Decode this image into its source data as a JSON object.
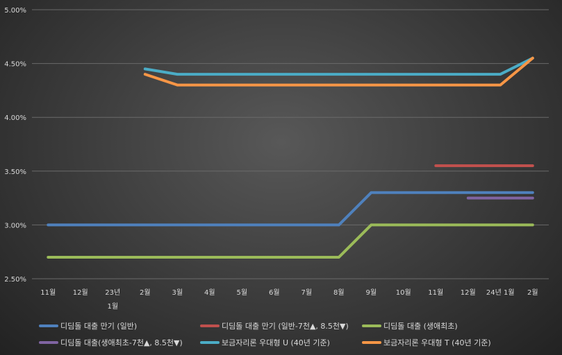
{
  "chart_data": {
    "type": "line",
    "title": "",
    "xlabel": "",
    "ylabel": "",
    "categories": [
      "11월",
      "12월",
      "23년 1월",
      "2월",
      "3월",
      "4월",
      "5월",
      "6월",
      "7월",
      "8월",
      "9월",
      "10월",
      "11월",
      "12월",
      "24년 1월",
      "2월"
    ],
    "category_lines": [
      [
        "11월"
      ],
      [
        "12월"
      ],
      [
        "23년",
        "1월"
      ],
      [
        "2월"
      ],
      [
        "3월"
      ],
      [
        "4월"
      ],
      [
        "5월"
      ],
      [
        "6월"
      ],
      [
        "7월"
      ],
      [
        "8월"
      ],
      [
        "9월"
      ],
      [
        "10월"
      ],
      [
        "11월"
      ],
      [
        "12월"
      ],
      [
        "24년 1월"
      ],
      [
        "2월"
      ]
    ],
    "ylim": [
      2.5,
      5.0
    ],
    "yticks": [
      2.5,
      3.0,
      3.5,
      4.0,
      4.5,
      5.0
    ],
    "ytick_labels": [
      "2.50%",
      "3.00%",
      "3.50%",
      "4.00%",
      "4.50%",
      "5.00%"
    ],
    "grid": true,
    "legend_position": "bottom",
    "series": [
      {
        "name": "디딤돌 대출 만기 (일반)",
        "color": "#4f81bd",
        "values": [
          3.0,
          3.0,
          3.0,
          3.0,
          3.0,
          3.0,
          3.0,
          3.0,
          3.0,
          3.0,
          3.3,
          3.3,
          3.3,
          3.3,
          3.3,
          3.3
        ]
      },
      {
        "name": "디딤돌 대출 만기 (일반-7천▲, 8.5천▼)",
        "color": "#c0504d",
        "values": [
          null,
          null,
          null,
          null,
          null,
          null,
          null,
          null,
          null,
          null,
          null,
          null,
          3.55,
          3.55,
          3.55,
          3.55
        ]
      },
      {
        "name": "디딤돌 대출 (생애최초)",
        "color": "#9bbb59",
        "values": [
          2.7,
          2.7,
          2.7,
          2.7,
          2.7,
          2.7,
          2.7,
          2.7,
          2.7,
          2.7,
          3.0,
          3.0,
          3.0,
          3.0,
          3.0,
          3.0
        ]
      },
      {
        "name": "디딤돌 대출(생애최초-7천▲, 8.5천▼)",
        "color": "#8064a2",
        "values": [
          null,
          null,
          null,
          null,
          null,
          null,
          null,
          null,
          null,
          null,
          null,
          null,
          null,
          3.25,
          3.25,
          3.25
        ]
      },
      {
        "name": "보금자리론 우대형 U (40년 기준)",
        "color": "#4bacc6",
        "values": [
          null,
          null,
          null,
          4.45,
          4.4,
          4.4,
          4.4,
          4.4,
          4.4,
          4.4,
          4.4,
          4.4,
          4.4,
          4.4,
          4.4,
          4.55
        ]
      },
      {
        "name": "보금자리론 우대형 T (40년 기준)",
        "color": "#f79646",
        "values": [
          null,
          null,
          null,
          4.4,
          4.3,
          4.3,
          4.3,
          4.3,
          4.3,
          4.3,
          4.3,
          4.3,
          4.3,
          4.3,
          4.3,
          4.55
        ]
      }
    ]
  }
}
